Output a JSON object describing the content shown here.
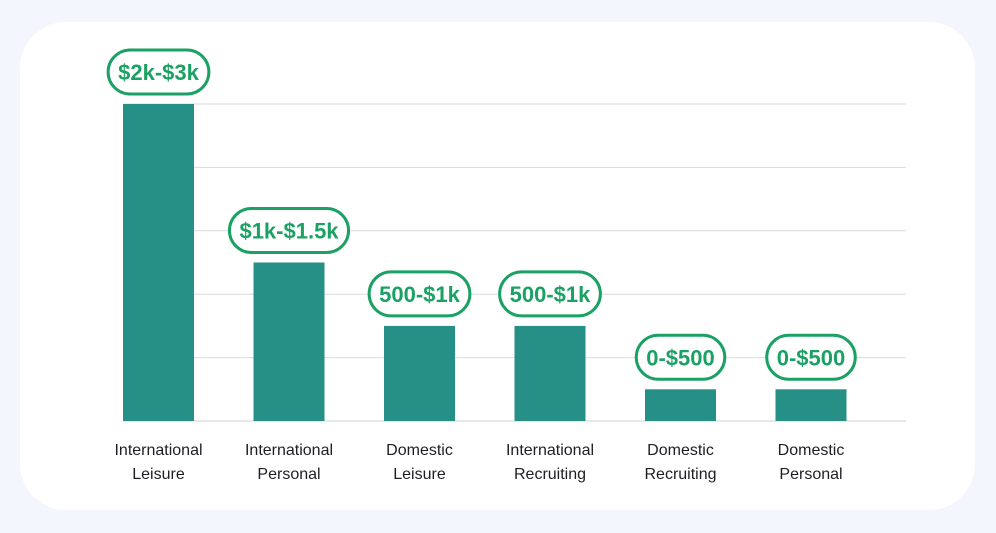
{
  "colors": {
    "bar": "#268f86",
    "label_border": "#1aa163",
    "label_text": "#1aa163",
    "gridline": "#d9dadf",
    "axis": "#cfd1d6",
    "background": "#f4f6fd",
    "card": "#ffffff"
  },
  "chart_data": {
    "type": "bar",
    "title": "",
    "xlabel": "",
    "ylabel": "",
    "categories": [
      [
        "International",
        "Leisure"
      ],
      [
        "International",
        "Personal"
      ],
      [
        "Domestic",
        "Leisure"
      ],
      [
        "International",
        "Recruiting"
      ],
      [
        "Domestic",
        "Recruiting"
      ],
      [
        "Domestic",
        "Personal"
      ]
    ],
    "values": [
      5,
      2.5,
      1.5,
      1.5,
      0.5,
      0.5
    ],
    "data_labels": [
      "$2k-$3k",
      "$1k-$1.5k",
      "500-$1k",
      "500-$1k",
      "0-$500",
      "0-$500"
    ],
    "ylim": [
      0,
      5
    ],
    "y_grid_steps": 5,
    "grid": true,
    "legend": "none"
  }
}
